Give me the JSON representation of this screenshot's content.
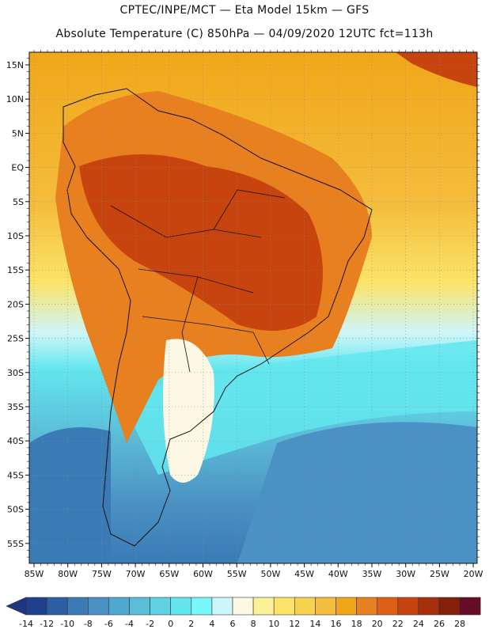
{
  "header": {
    "line1": "CPTEC/INPE/MCT —  Eta Model 15km — GFS",
    "line2": "Absolute Temperature (C) 850hPa — 04/09/2020 12UTC fct=113h"
  },
  "map": {
    "lat_labels": [
      "15N",
      "10N",
      "5N",
      "EQ",
      "5S",
      "10S",
      "15S",
      "20S",
      "25S",
      "30S",
      "35S",
      "40S",
      "45S",
      "50S",
      "55S"
    ],
    "lon_labels": [
      "85W",
      "80W",
      "75W",
      "70W",
      "65W",
      "60W",
      "55W",
      "50W",
      "45W",
      "40W",
      "35W",
      "30W",
      "25W",
      "20W"
    ]
  },
  "colorbar": {
    "ticks": [
      "-14",
      "-12",
      "-10",
      "-8",
      "-6",
      "-4",
      "-2",
      "0",
      "2",
      "4",
      "6",
      "8",
      "10",
      "12",
      "14",
      "16",
      "18",
      "20",
      "22",
      "24",
      "26",
      "28"
    ],
    "colors": [
      "#1f3f8f",
      "#2c5ea3",
      "#3a7ab5",
      "#4a92c3",
      "#4fa8cf",
      "#5bbdd9",
      "#5fd3e4",
      "#63e6ee",
      "#77f8f8",
      "#cdf6fb",
      "#fdf8e3",
      "#fbf196",
      "#fbe468",
      "#f8d14f",
      "#f4bd3d",
      "#f1a619",
      "#e9801f",
      "#de5f14",
      "#c8440f",
      "#a82f0c",
      "#862008",
      "#6b0a27"
    ],
    "under_color": "#1d3680",
    "over_color": "#6b0a27"
  },
  "style": {
    "ocean_south": "#4fa8cf",
    "ocean_warm": "#f4bd3d",
    "land_hot": "#d45a14",
    "land_warm": "#e9801f"
  }
}
